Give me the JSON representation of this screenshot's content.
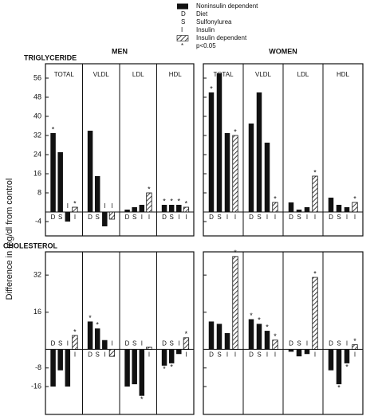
{
  "legend": [
    {
      "symbol": "",
      "label": "Noninsulin dependent"
    },
    {
      "symbol": "D",
      "label": "Diet"
    },
    {
      "symbol": "S",
      "label": "Sulfonylurea"
    },
    {
      "symbol": "I",
      "label": "Insulin"
    },
    {
      "symbol": "",
      "label": "Insulin dependent"
    },
    {
      "symbol": "*",
      "label": "p<0.05"
    }
  ],
  "y_label": "Difference in mg/dl from control",
  "group_names": [
    "MEN",
    "WOMEN"
  ],
  "panel_names": [
    "TOTAL",
    "VLDL",
    "LDL",
    "HDL"
  ],
  "chart_data": [
    {
      "type": "bar",
      "title": "TRIGLYCERIDE",
      "categories": [
        "D",
        "S",
        "I",
        "I"
      ],
      "color": "#111111",
      "hatched": [
        false,
        false,
        false,
        true
      ],
      "ylim": [
        -10,
        62
      ],
      "yticks": [
        -4,
        8,
        16,
        24,
        32,
        40,
        48,
        56
      ],
      "groups": [
        [
          {
            "values": [
              33,
              25,
              -4,
              2
            ],
            "significant": [
              true,
              false,
              false,
              true
            ]
          },
          {
            "values": [
              34,
              15,
              -6,
              -3
            ],
            "significant": [
              false,
              false,
              false,
              false
            ]
          },
          {
            "values": [
              1,
              2,
              3,
              8
            ],
            "significant": [
              false,
              false,
              false,
              true
            ]
          },
          {
            "values": [
              3,
              3,
              3,
              2
            ],
            "significant": [
              true,
              true,
              true,
              true
            ]
          }
        ],
        [
          {
            "values": [
              50,
              58,
              33,
              32
            ],
            "significant": [
              true,
              false,
              false,
              true
            ]
          },
          {
            "values": [
              37,
              50,
              29,
              4
            ],
            "significant": [
              false,
              false,
              false,
              true
            ]
          },
          {
            "values": [
              4,
              1,
              2,
              15
            ],
            "significant": [
              false,
              false,
              false,
              true
            ]
          },
          {
            "values": [
              6,
              3,
              2,
              4
            ],
            "significant": [
              false,
              false,
              false,
              true
            ]
          }
        ]
      ]
    },
    {
      "type": "bar",
      "title": "CHOLESTEROL",
      "categories": [
        "D",
        "S",
        "I",
        "I"
      ],
      "color": "#111111",
      "hatched": [
        false,
        false,
        false,
        true
      ],
      "ylim": [
        -28,
        42
      ],
      "yticks": [
        -16,
        -8,
        16,
        32
      ],
      "groups": [
        [
          {
            "values": [
              -16,
              -9,
              -16,
              6
            ],
            "significant": [
              false,
              false,
              false,
              true
            ]
          },
          {
            "values": [
              12,
              9,
              4,
              -3
            ],
            "significant": [
              true,
              true,
              false,
              false
            ]
          },
          {
            "values": [
              -16,
              -15,
              -20,
              1
            ],
            "significant": [
              false,
              false,
              true,
              false
            ]
          },
          {
            "values": [
              -7,
              -6,
              -2,
              5
            ],
            "significant": [
              true,
              true,
              false,
              true
            ]
          }
        ],
        [
          {
            "values": [
              12,
              11,
              7,
              40
            ],
            "significant": [
              false,
              false,
              false,
              true
            ]
          },
          {
            "values": [
              13,
              11,
              8,
              4
            ],
            "significant": [
              true,
              true,
              true,
              true
            ]
          },
          {
            "values": [
              -1,
              -3,
              -2,
              31
            ],
            "significant": [
              false,
              false,
              false,
              true
            ]
          },
          {
            "values": [
              -9,
              -15,
              -6,
              2
            ],
            "significant": [
              false,
              true,
              true,
              true
            ]
          }
        ]
      ]
    }
  ]
}
